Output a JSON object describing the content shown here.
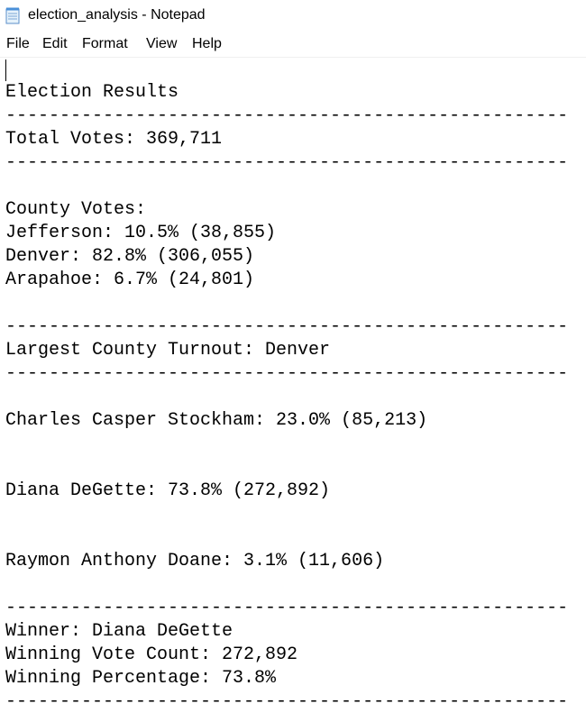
{
  "window": {
    "title": "election_analysis - Notepad",
    "icon": "notepad-icon"
  },
  "menu": {
    "file": "File",
    "edit": "Edit",
    "format": "Format",
    "view": "View",
    "help": "Help"
  },
  "document": {
    "heading": "Election Results",
    "separator": "----------------------------------------------------",
    "total_votes": "Total Votes: 369,711",
    "county_votes_label": "County Votes:",
    "counties": [
      "Jefferson: 10.5% (38,855)",
      "Denver: 82.8% (306,055)",
      "Arapahoe: 6.7% (24,801)"
    ],
    "largest_county": "Largest County Turnout: Denver",
    "candidates": [
      "Charles Casper Stockham: 23.0% (85,213)",
      "Diana DeGette: 73.8% (272,892)",
      "Raymon Anthony Doane: 3.1% (11,606)"
    ],
    "winner": "Winner: Diana DeGette",
    "winning_vote_count": "Winning Vote Count: 272,892",
    "winning_percentage": "Winning Percentage: 73.8%"
  }
}
